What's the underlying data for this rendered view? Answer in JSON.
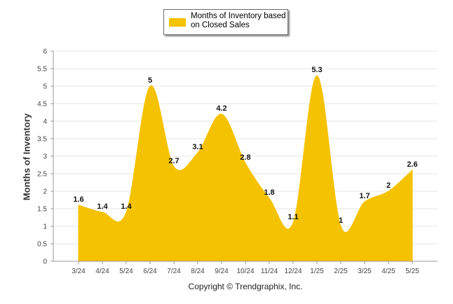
{
  "chart_data": {
    "type": "area",
    "ylabel": "Months of Inventory",
    "ylim": [
      0,
      6
    ],
    "yticks": [
      "0",
      "0.5",
      "1",
      "1.5",
      "2",
      "2.5",
      "3",
      "3.5",
      "4",
      "4.5",
      "5",
      "5.5",
      "6"
    ],
    "categories": [
      "3/24",
      "4/24",
      "5/24",
      "6/24",
      "7/24",
      "8/24",
      "9/24",
      "10/24",
      "11/24",
      "12/24",
      "1/25",
      "2/25",
      "3/25",
      "4/25",
      "5/25"
    ],
    "series": [
      {
        "name": "Months of Inventory based on Closed Sales",
        "values": [
          1.6,
          1.4,
          1.4,
          5,
          2.7,
          3.1,
          4.2,
          2.8,
          1.8,
          1.1,
          5.3,
          1,
          1.7,
          2,
          2.6
        ],
        "labels": [
          "1.6",
          "1.4",
          "1.4",
          "5",
          "2.7",
          "3.1",
          "4.2",
          "2.8",
          "1.8",
          "1.1",
          "5.3",
          "1",
          "1.7",
          "2",
          "2.6"
        ]
      }
    ],
    "grid": true,
    "legend": "top-center",
    "color": "#f5c200"
  },
  "footer": "Copyright © Trendgraphix, Inc."
}
